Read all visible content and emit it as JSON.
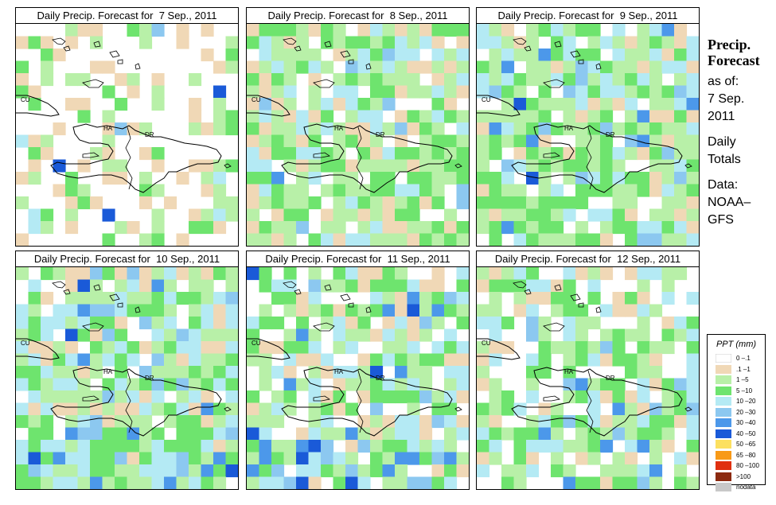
{
  "panels": [
    {
      "title": "Daily Precip. Forecast for  7 Sep., 2011",
      "day": 7
    },
    {
      "title": "Daily Precip. Forecast for  8 Sep., 2011",
      "day": 8
    },
    {
      "title": "Daily Precip. Forecast for  9 Sep., 2011",
      "day": 9
    },
    {
      "title": "Daily Precip. Forecast for  10 Sep., 2011",
      "day": 10
    },
    {
      "title": "Daily Precip. Forecast for  11 Sep., 2011",
      "day": 11
    },
    {
      "title": "Daily Precip. Forecast for  12 Sep., 2011",
      "day": 12
    }
  ],
  "map_labels": {
    "cuba": "CU",
    "haiti": "HA",
    "dominican_republic": "DR"
  },
  "side_info": {
    "title_line1": "Precip.",
    "title_line2": "Forecast",
    "asof_label": "as of:",
    "asof_date_line1": "7 Sep.",
    "asof_date_line2": "2011",
    "totals_line1": "Daily",
    "totals_line2": "Totals",
    "data_line1": "Data:",
    "data_line2": "NOAA–",
    "data_line3": "GFS"
  },
  "legend": {
    "title": "PPT (mm)",
    "items": [
      {
        "label": "0 –.1",
        "color": "#ffffff"
      },
      {
        "label": ".1 –1",
        "color": "#f0d8b6"
      },
      {
        "label": "1 –5",
        "color": "#b8f0a8"
      },
      {
        "label": "5 –10",
        "color": "#6ee46e"
      },
      {
        "label": "10 –20",
        "color": "#b4eaf4"
      },
      {
        "label": "20 –30",
        "color": "#8cc8f0"
      },
      {
        "label": "30 –40",
        "color": "#4c98ea"
      },
      {
        "label": "40 –50",
        "color": "#1a5ad8"
      },
      {
        "label": "50 –65",
        "color": "#fce060"
      },
      {
        "label": "65 –80",
        "color": "#f89a18"
      },
      {
        "label": "80 –100",
        "color": "#e03010"
      },
      {
        "label": ">100",
        "color": "#8c2a10"
      },
      {
        "label": "nodata",
        "color": "#c8c8c8"
      }
    ]
  }
}
